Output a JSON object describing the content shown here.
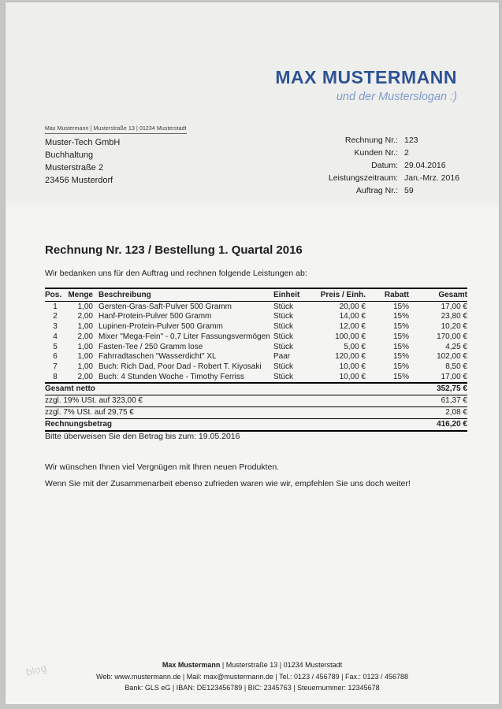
{
  "colors": {
    "brand": "#2e5395",
    "slogan": "#7e9bd0"
  },
  "brand": {
    "name": "MAX MUSTERMANN",
    "slogan": "und der Musterslogan :)"
  },
  "sender_line": "Max Mustermann | Musterstraße 13 | 01234 Musterstadt",
  "recipient": {
    "company": "Muster-Tech GmbH",
    "department": "Buchhaltung",
    "street": "Musterstraße 2",
    "city": "23456 Musterdorf"
  },
  "meta": {
    "rows": [
      {
        "label": "Rechnung Nr.:",
        "value": "123"
      },
      {
        "label": "Kunden Nr.:",
        "value": "2"
      },
      {
        "label": "Datum:",
        "value": "29.04.2016"
      },
      {
        "label": "Leistungszeitraum:",
        "value": "Jan.-Mrz. 2016"
      },
      {
        "label": "Auftrag Nr.:",
        "value": "59"
      }
    ]
  },
  "title": "Rechnung Nr. 123 / Bestellung 1. Quartal 2016",
  "intro": "Wir bedanken uns für den Auftrag und rechnen folgende Leistungen ab:",
  "table": {
    "headers": [
      "Pos.",
      "Menge",
      "Beschreibung",
      "Einheit",
      "Preis / Einh.",
      "Rabatt",
      "Gesamt"
    ],
    "rows": [
      [
        "1",
        "1,00",
        "Gersten-Gras-Saft-Pulver 500 Gramm",
        "Stück",
        "20,00 €",
        "15%",
        "17,00 €"
      ],
      [
        "2",
        "2,00",
        "Hanf-Protein-Pulver 500 Gramm",
        "Stück",
        "14,00 €",
        "15%",
        "23,80 €"
      ],
      [
        "3",
        "1,00",
        "Lupinen-Protein-Pulver 500 Gramm",
        "Stück",
        "12,00 €",
        "15%",
        "10,20 €"
      ],
      [
        "4",
        "2,00",
        "Mixer \"Mega-Fein\" - 0,7 Liter Fassungsvermögen",
        "Stück",
        "100,00 €",
        "15%",
        "170,00 €"
      ],
      [
        "5",
        "1,00",
        "Fasten-Tee / 250 Gramm lose",
        "Stück",
        "5,00 €",
        "15%",
        "4,25 €"
      ],
      [
        "6",
        "1,00",
        "Fahrradtaschen \"Wasserdicht\" XL",
        "Paar",
        "120,00 €",
        "15%",
        "102,00 €"
      ],
      [
        "7",
        "1,00",
        "Buch: Rich Dad, Poor Dad - Robert T. Kiyosaki",
        "Stück",
        "10,00 €",
        "15%",
        "8,50 €"
      ],
      [
        "8",
        "2,00",
        "Buch: 4 Stunden Woche - Timothy Ferriss",
        "Stück",
        "10,00 €",
        "15%",
        "17,00 €"
      ]
    ],
    "totals": [
      {
        "label": "Gesamt netto",
        "value": "352,75 €",
        "bold": true
      },
      {
        "label": "zzgl. 19% USt. auf 323,00 €",
        "value": "61,37 €",
        "bold": false
      },
      {
        "label": "zzgl. 7% USt. auf 29,75 €",
        "value": "2,08 €",
        "bold": false
      },
      {
        "label": "Rechnungsbetrag",
        "value": "416,20 €",
        "bold": true
      }
    ]
  },
  "notes": {
    "payment": "Bitte überweisen Sie den Betrag bis zum: 19.05.2016",
    "thanks": "Wir wünschen Ihnen viel Vergnügen mit Ihren neuen Produkten.",
    "referral": "Wenn Sie mit der Zusammenarbeit ebenso zufrieden waren wie wir, empfehlen Sie uns doch weiter!"
  },
  "footer": {
    "name": "Max Mustermann",
    "line1_rest": " | Musterstraße 13 | 01234 Musterstadt",
    "line2": "Web: www.mustermann.de | Mail: max@mustermann.de | Tel.: 0123 / 456789 | Fax.: 0123 / 456788",
    "line3": "Bank: GLS eG | IBAN: DE123456789 | BIC: 2345763 | Steuernummer: 12345678"
  },
  "watermark": "blog"
}
